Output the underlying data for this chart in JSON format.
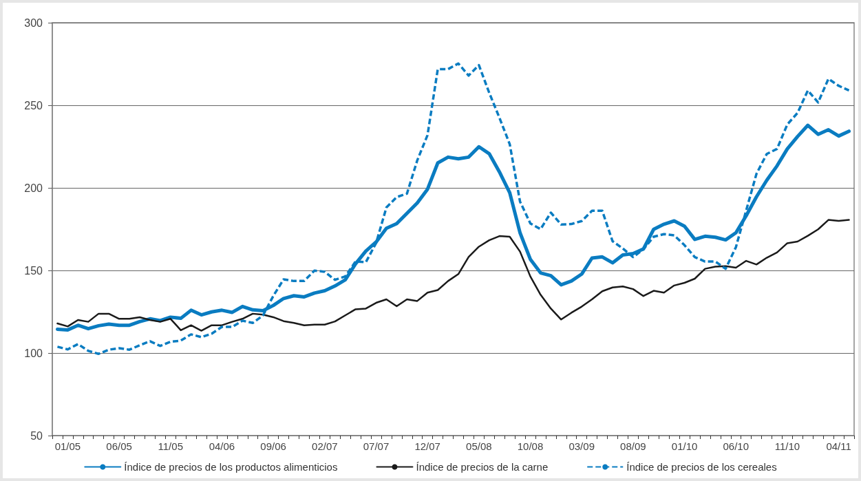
{
  "chart_data": {
    "type": "line",
    "categories": [
      null,
      "01/05",
      null,
      null,
      null,
      null,
      "06/05",
      null,
      null,
      null,
      null,
      "11/05",
      null,
      null,
      null,
      null,
      "04/06",
      null,
      null,
      null,
      null,
      "09/06",
      null,
      null,
      null,
      null,
      "02/07",
      null,
      null,
      null,
      null,
      "07/07",
      null,
      null,
      null,
      null,
      "12/07",
      null,
      null,
      null,
      null,
      "05/08",
      null,
      null,
      null,
      null,
      "10/08",
      null,
      null,
      null,
      null,
      "03/09",
      null,
      null,
      null,
      null,
      "08/09",
      null,
      null,
      null,
      null,
      "01/10",
      null,
      null,
      null,
      null,
      "06/10",
      null,
      null,
      null,
      null,
      "11/10",
      null,
      null,
      null,
      null,
      "04/11",
      null
    ],
    "series": [
      {
        "name": "Índice de precios de los productos alimenticios",
        "color": "#0a7cc1",
        "line_style": "solid",
        "values": [
          114.4,
          114,
          116.8,
          114.7,
          116.5,
          117.5,
          116.8,
          116.8,
          119,
          120.7,
          119.6,
          121.7,
          121,
          125.9,
          123.1,
          124.9,
          125.9,
          124.6,
          128.2,
          126.1,
          125.6,
          128.8,
          133,
          134.7,
          134,
          136.3,
          137.7,
          140.6,
          144.3,
          154,
          161.7,
          167.2,
          175.5,
          178.3,
          184.6,
          190.8,
          199.2,
          215.1,
          218.6,
          217.6,
          218.6,
          224.9,
          220.7,
          209.6,
          197,
          172.8,
          156.8,
          148.5,
          146.8,
          141.3,
          143.6,
          147.8,
          157.5,
          158.2,
          154.6,
          159.4,
          160.2,
          163,
          174.9,
          178,
          180,
          176.8,
          168.8,
          170.7,
          170.1,
          168.5,
          172.8,
          183.1,
          194.6,
          204.6,
          213.3,
          223.6,
          231.1,
          237.9,
          232.4,
          235.2,
          231.4,
          234.3
        ]
      },
      {
        "name": "Índice de precios de la carne",
        "color": "#1a1a1a",
        "line_style": "solid",
        "values": [
          117.9,
          116.1,
          120,
          118.9,
          123.8,
          123.8,
          120.7,
          120.7,
          121.7,
          120,
          118.9,
          120.7,
          113.8,
          116.8,
          113.5,
          116.8,
          116.8,
          118.9,
          120.7,
          123.8,
          123.2,
          121.7,
          119.3,
          118.2,
          116.8,
          117.2,
          117.2,
          119.1,
          122.8,
          126.5,
          126.9,
          130.4,
          132.5,
          128.3,
          132.5,
          131.5,
          136.6,
          138.1,
          143.6,
          147.8,
          158.2,
          164.4,
          168.3,
          170.8,
          170.4,
          161.4,
          146.4,
          135.3,
          126.9,
          120.3,
          124.4,
          128.1,
          132.5,
          137.4,
          139.7,
          140.3,
          138.7,
          134.5,
          137.7,
          136.6,
          140.9,
          142.5,
          145,
          151,
          152.3,
          152.6,
          151.7,
          155.8,
          153.6,
          157.7,
          160.9,
          166.5,
          167.5,
          171,
          174.9,
          180.6,
          180,
          180.6
        ]
      },
      {
        "name": "Índice de precios de los cereales",
        "color": "#0a7cc1",
        "line_style": "dashed",
        "values": [
          103.8,
          102.2,
          105.4,
          101.3,
          99.5,
          102,
          102.9,
          102,
          104.7,
          107.1,
          104.3,
          106.8,
          107.5,
          111.3,
          109.6,
          111.7,
          115.8,
          115.8,
          119.6,
          118.2,
          122.8,
          134.6,
          144.6,
          143.6,
          143.6,
          149.9,
          149.2,
          144.3,
          146.4,
          155.4,
          155,
          166.6,
          188.1,
          194.4,
          196.5,
          216.6,
          231.9,
          271.9,
          271.9,
          275.3,
          268,
          274.3,
          257.6,
          242.4,
          226.4,
          191.7,
          178.5,
          175,
          185,
          177.8,
          178.1,
          179.9,
          186.1,
          186.1,
          167.7,
          163.3,
          158.1,
          162.8,
          170.4,
          172,
          171.2,
          165.3,
          158.1,
          155.4,
          155.4,
          151,
          164.1,
          186.3,
          208.5,
          220.5,
          223.6,
          238.4,
          245.4,
          259,
          251.7,
          266,
          261.8,
          259
        ]
      }
    ],
    "ylim": [
      50,
      300
    ],
    "yticks": [
      50,
      100,
      150,
      200,
      250,
      300
    ],
    "grid": "y",
    "legend": "bottom",
    "marker": "none"
  }
}
